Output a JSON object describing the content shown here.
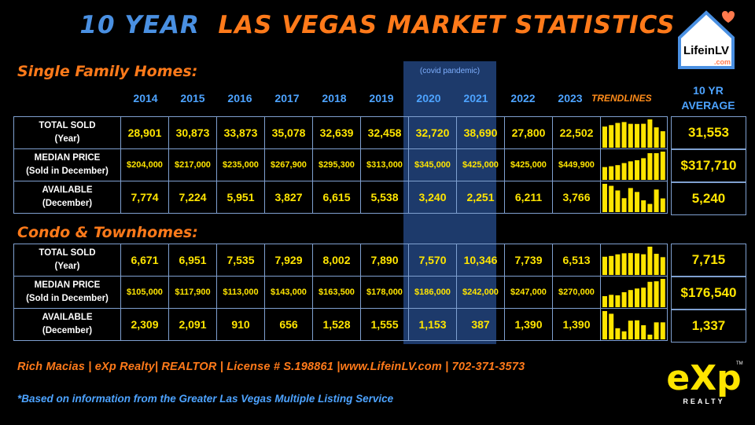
{
  "title": {
    "part1": "10 YEAR",
    "part2": "LAS VEGAS MARKET STATISTICS"
  },
  "logo": {
    "text_main": "LifeinLV",
    "text_sub": ".com"
  },
  "covid_note": "(covid pandemic)",
  "years": [
    "2014",
    "2015",
    "2016",
    "2017",
    "2018",
    "2019",
    "2020",
    "2021",
    "2022",
    "2023"
  ],
  "trendlines_header": "TRENDLINES",
  "avg_header": {
    "line1": "10 YR",
    "line2": "AVERAGE"
  },
  "sections": [
    {
      "title": "Single Family Homes:",
      "rows": [
        {
          "label1": "TOTAL SOLD",
          "label2": "(Year)",
          "values": [
            "28,901",
            "30,873",
            "33,873",
            "35,078",
            "32,639",
            "32,458",
            "32,720",
            "38,690",
            "27,800",
            "22,502"
          ],
          "average": "31,553"
        },
        {
          "label1": "MEDIAN PRICE",
          "label2": "(Sold in December)",
          "values": [
            "$204,000",
            "$217,000",
            "$235,000",
            "$267,900",
            "$295,300",
            "$313,000",
            "$345,000",
            "$425,000",
            "$425,000",
            "$449,900"
          ],
          "average": "$317,710"
        },
        {
          "label1": "AVAILABLE",
          "label2": "(December)",
          "values": [
            "7,774",
            "7,224",
            "5,951",
            "3,827",
            "6,615",
            "5,538",
            "3,240",
            "2,251",
            "6,211",
            "3,766"
          ],
          "average": "5,240"
        }
      ]
    },
    {
      "title": "Condo & Townhomes:",
      "rows": [
        {
          "label1": "TOTAL SOLD",
          "label2": "(Year)",
          "values": [
            "6,671",
            "6,951",
            "7,535",
            "7,929",
            "8,002",
            "7,890",
            "7,570",
            "10,346",
            "7,739",
            "6,513"
          ],
          "average": "7,715"
        },
        {
          "label1": "MEDIAN PRICE",
          "label2": "(Sold in December)",
          "values": [
            "$105,000",
            "$117,900",
            "$113,000",
            "$143,000",
            "$163,500",
            "$178,000",
            "$186,000",
            "$242,000",
            "$247,000",
            "$270,000"
          ],
          "average": "$176,540"
        },
        {
          "label1": "AVAILABLE",
          "label2": "(December)",
          "values": [
            "2,309",
            "2,091",
            "910",
            "656",
            "1,528",
            "1,555",
            "1,153",
            "387",
            "1,390",
            "1,390"
          ],
          "average": "1,337"
        }
      ]
    }
  ],
  "footer": {
    "line1": "Rich Macias | eXp Realty| REALTOR | License # S.198861 |www.LifeinLV.com |  702-371-3573",
    "line2": "*Based on information from the Greater Las Vegas Multiple Listing Service"
  },
  "brand": {
    "exp": "eXp",
    "realty": "REALTY",
    "tm": "TM"
  },
  "colors": {
    "accent_orange": "#ff7a1a",
    "accent_blue": "#4da3ff",
    "value_yellow": "#ffe500",
    "covid_band": "#1d3a6b"
  },
  "chart_data": {
    "type": "table",
    "categories": [
      "2014",
      "2015",
      "2016",
      "2017",
      "2018",
      "2019",
      "2020",
      "2021",
      "2022",
      "2023"
    ],
    "series": [
      {
        "name": "Single Family Homes: TOTAL SOLD (Year)",
        "values": [
          28901,
          30873,
          33873,
          35078,
          32639,
          32458,
          32720,
          38690,
          27800,
          22502
        ]
      },
      {
        "name": "Single Family Homes: MEDIAN PRICE (Sold in December)",
        "values": [
          204000,
          217000,
          235000,
          267900,
          295300,
          313000,
          345000,
          425000,
          425000,
          449900
        ]
      },
      {
        "name": "Single Family Homes: AVAILABLE (December)",
        "values": [
          7774,
          7224,
          5951,
          3827,
          6615,
          5538,
          3240,
          2251,
          6211,
          3766
        ]
      },
      {
        "name": "Condo & Townhomes: TOTAL SOLD (Year)",
        "values": [
          6671,
          6951,
          7535,
          7929,
          8002,
          7890,
          7570,
          10346,
          7739,
          6513
        ]
      },
      {
        "name": "Condo & Townhomes: MEDIAN PRICE (Sold in December)",
        "values": [
          105000,
          117900,
          113000,
          143000,
          163500,
          178000,
          186000,
          242000,
          247000,
          270000
        ]
      },
      {
        "name": "Condo & Townhomes: AVAILABLE (December)",
        "values": [
          2309,
          2091,
          910,
          656,
          1528,
          1555,
          1153,
          387,
          1390,
          1390
        ]
      }
    ]
  }
}
